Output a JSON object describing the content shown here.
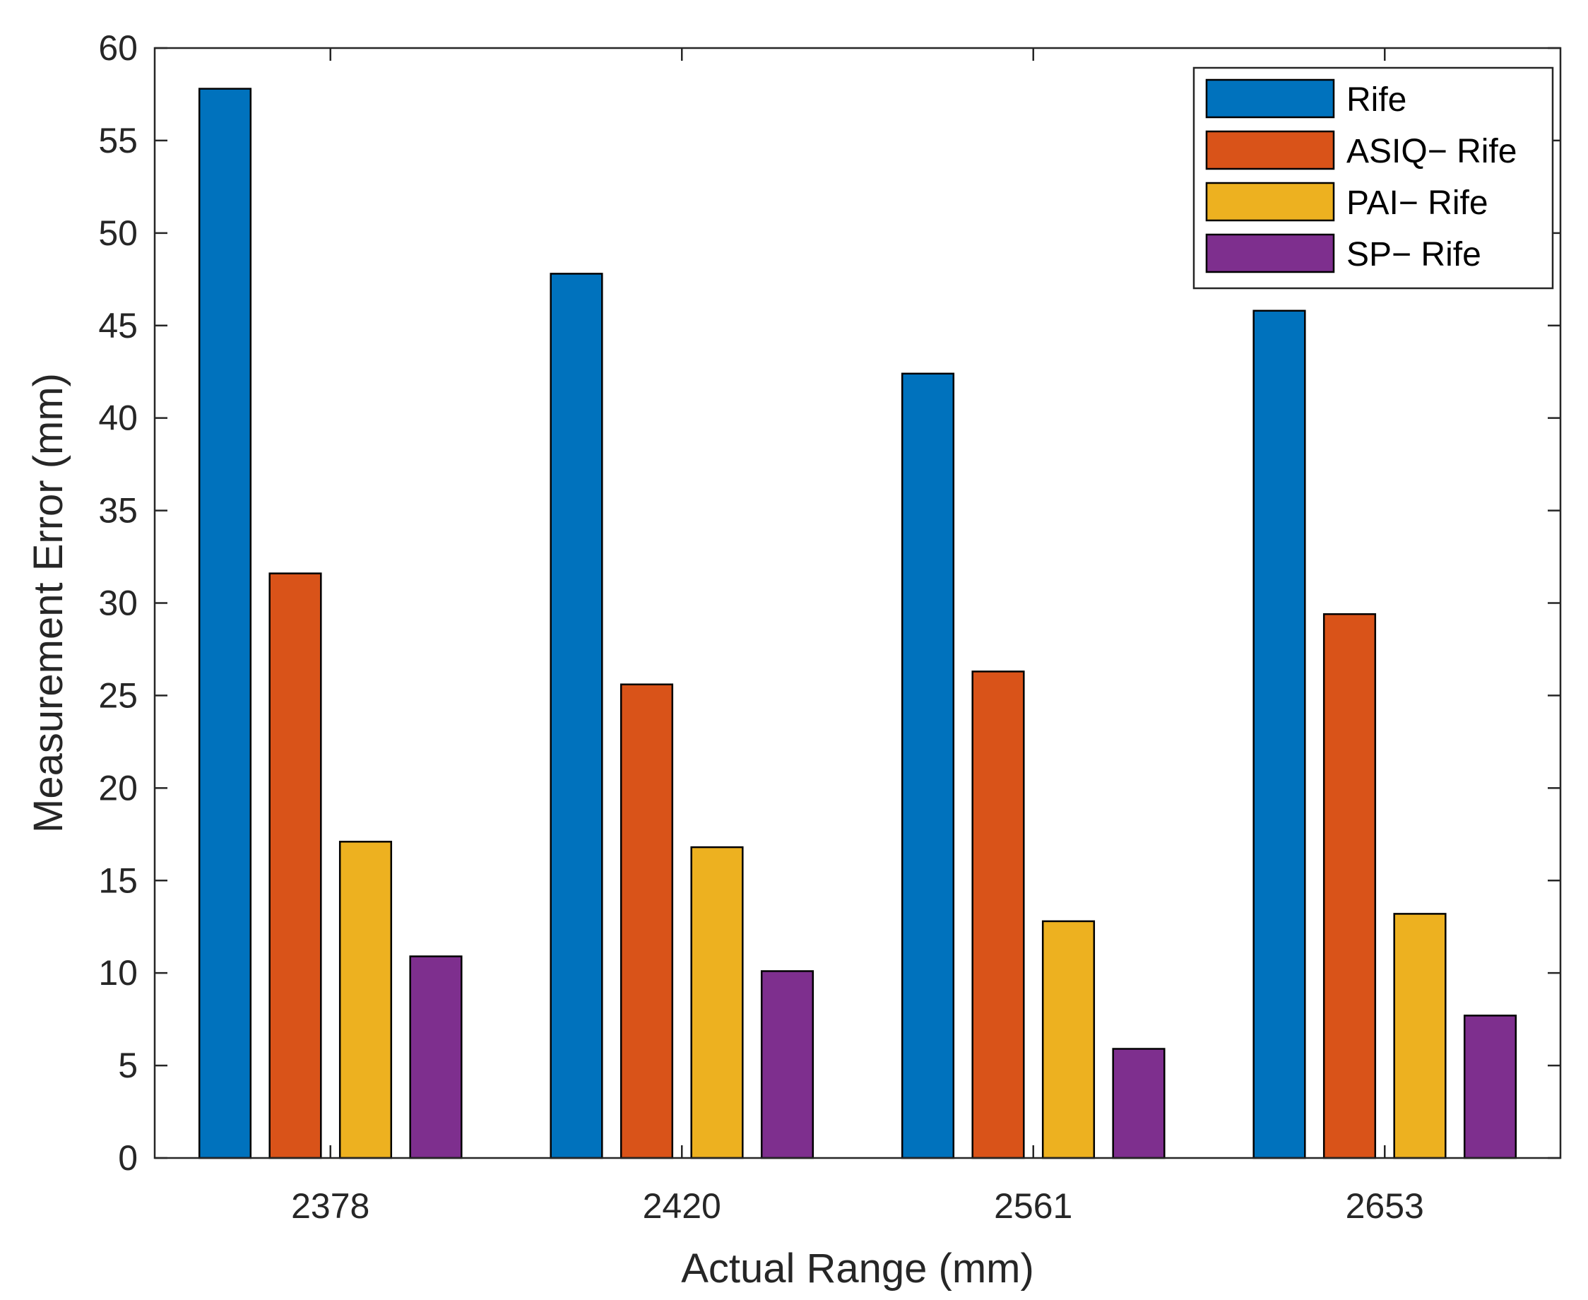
{
  "chart_data": {
    "type": "bar",
    "title": "",
    "xlabel": "Actual Range (mm)",
    "ylabel": "Measurement Error (mm)",
    "categories": [
      "2378",
      "2420",
      "2561",
      "2653"
    ],
    "ylim": [
      0,
      60
    ],
    "yticks": [
      0,
      5,
      10,
      15,
      20,
      25,
      30,
      35,
      40,
      45,
      50,
      55,
      60
    ],
    "grid": false,
    "legend_position": "top-right",
    "series": [
      {
        "name": "Rife",
        "color": "#0072BD",
        "values": [
          57.8,
          47.8,
          42.4,
          45.8
        ]
      },
      {
        "name": "ASIQ− Rife",
        "color": "#D95319",
        "values": [
          31.6,
          25.6,
          26.3,
          29.4
        ]
      },
      {
        "name": "PAI− Rife",
        "color": "#EDB120",
        "values": [
          17.1,
          16.8,
          12.8,
          13.2
        ]
      },
      {
        "name": "SP− Rife",
        "color": "#7E2F8E",
        "values": [
          10.9,
          10.1,
          5.9,
          7.7
        ]
      }
    ]
  }
}
